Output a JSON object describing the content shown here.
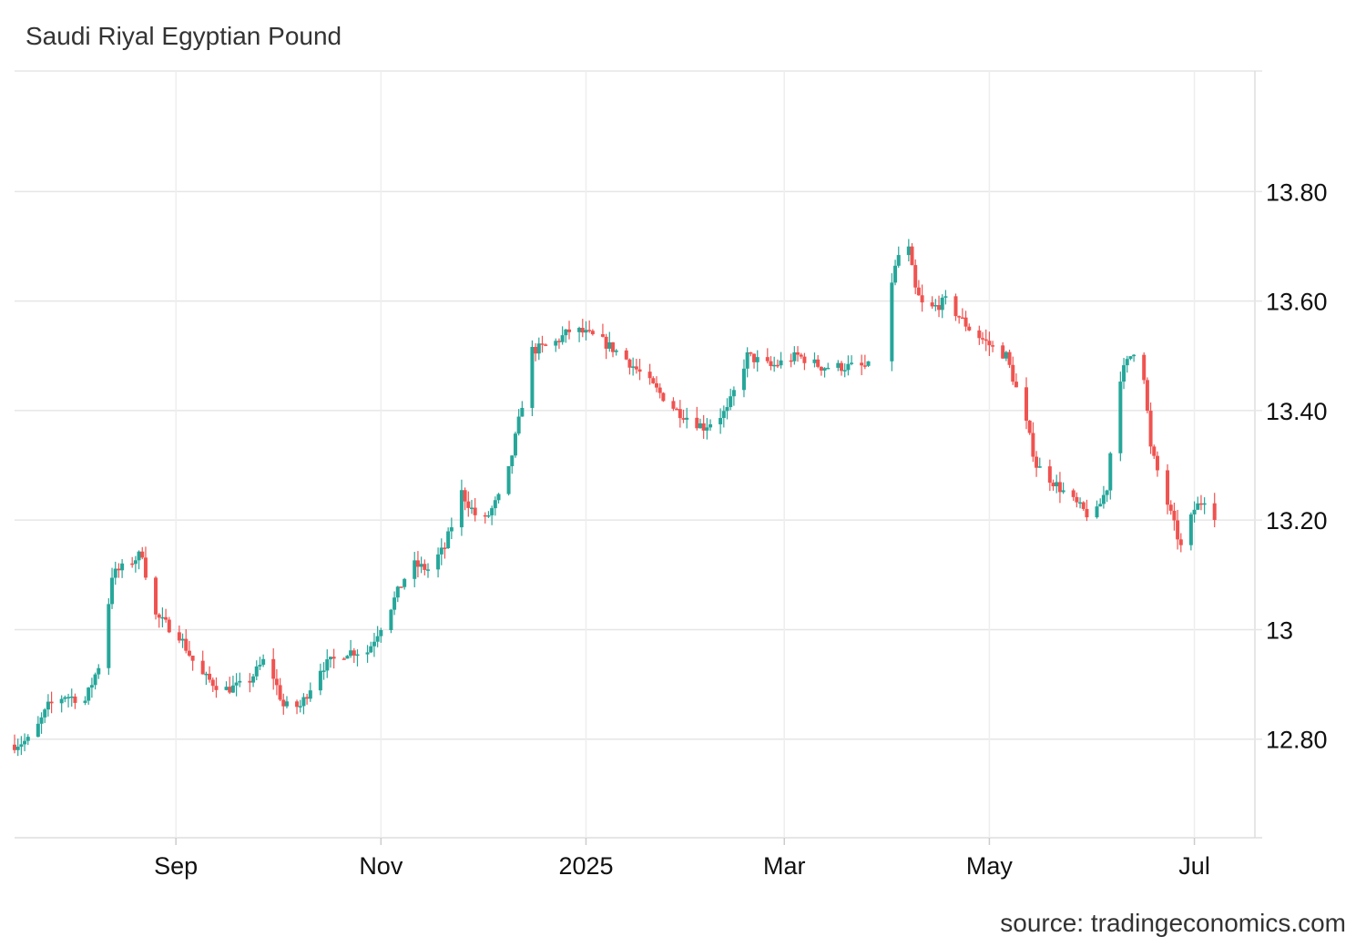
{
  "header": {
    "title": "Saudi Riyal Egyptian Pound"
  },
  "footer": {
    "source": "source: tradingeconomics.com"
  },
  "chart_data": {
    "type": "candlestick",
    "title": "Saudi Riyal Egyptian Pound",
    "xlabel": "",
    "ylabel": "",
    "ylim": [
      12.62,
      14.02
    ],
    "y_ticks": [
      {
        "value": 13.8,
        "label": "13.80"
      },
      {
        "value": 13.6,
        "label": "13.60"
      },
      {
        "value": 13.4,
        "label": "13.40"
      },
      {
        "value": 13.2,
        "label": "13.20"
      },
      {
        "value": 13.0,
        "label": "13"
      },
      {
        "value": 12.8,
        "label": "12.80"
      }
    ],
    "x_ticks": [
      {
        "date": "2024-09-01",
        "label": "Sep"
      },
      {
        "date": "2024-11-01",
        "label": "Nov"
      },
      {
        "date": "2025-01-01",
        "label": "2025"
      },
      {
        "date": "2025-03-01",
        "label": "Mar"
      },
      {
        "date": "2025-05-01",
        "label": "May"
      },
      {
        "date": "2025-07-01",
        "label": "Jul"
      }
    ],
    "x_range": [
      "2024-07-15",
      "2025-07-19"
    ],
    "grid": true,
    "colors": {
      "up": "#26a69a",
      "down": "#ef5350",
      "grid": "#e6e6e6"
    },
    "anchors": [
      [
        "2024-07-15",
        12.79
      ],
      [
        "2024-07-20",
        12.8
      ],
      [
        "2024-07-25",
        12.86
      ],
      [
        "2024-07-30",
        12.88
      ],
      [
        "2024-08-05",
        12.87
      ],
      [
        "2024-08-10",
        12.95
      ],
      [
        "2024-08-13",
        13.1
      ],
      [
        "2024-08-18",
        13.12
      ],
      [
        "2024-08-22",
        13.14
      ],
      [
        "2024-08-25",
        13.03
      ],
      [
        "2024-08-29",
        13.01
      ],
      [
        "2024-09-02",
        12.99
      ],
      [
        "2024-09-08",
        12.92
      ],
      [
        "2024-09-15",
        12.89
      ],
      [
        "2024-09-22",
        12.9
      ],
      [
        "2024-09-28",
        12.95
      ],
      [
        "2024-10-03",
        12.86
      ],
      [
        "2024-10-08",
        12.86
      ],
      [
        "2024-10-14",
        12.93
      ],
      [
        "2024-10-22",
        12.96
      ],
      [
        "2024-10-28",
        12.96
      ],
      [
        "2024-11-03",
        13.03
      ],
      [
        "2024-11-10",
        13.12
      ],
      [
        "2024-11-15",
        13.11
      ],
      [
        "2024-11-20",
        13.15
      ],
      [
        "2024-11-25",
        13.25
      ],
      [
        "2024-12-01",
        13.19
      ],
      [
        "2024-12-06",
        13.24
      ],
      [
        "2024-12-09",
        13.29
      ],
      [
        "2024-12-12",
        13.38
      ],
      [
        "2024-12-16",
        13.51
      ],
      [
        "2024-12-22",
        13.52
      ],
      [
        "2024-12-28",
        13.55
      ],
      [
        "2025-01-05",
        13.53
      ],
      [
        "2025-01-12",
        13.5
      ],
      [
        "2025-01-20",
        13.45
      ],
      [
        "2025-01-28",
        13.4
      ],
      [
        "2025-02-05",
        13.37
      ],
      [
        "2025-02-12",
        13.4
      ],
      [
        "2025-02-18",
        13.5
      ],
      [
        "2025-02-25",
        13.48
      ],
      [
        "2025-03-05",
        13.5
      ],
      [
        "2025-03-12",
        13.48
      ],
      [
        "2025-03-20",
        13.48
      ],
      [
        "2025-03-26",
        13.48
      ],
      [
        "2025-04-03",
        13.66
      ],
      [
        "2025-04-06",
        13.73
      ],
      [
        "2025-04-09",
        13.62
      ],
      [
        "2025-04-12",
        13.58
      ],
      [
        "2025-04-18",
        13.6
      ],
      [
        "2025-04-25",
        13.55
      ],
      [
        "2025-05-01",
        13.52
      ],
      [
        "2025-05-06",
        13.5
      ],
      [
        "2025-05-11",
        13.4
      ],
      [
        "2025-05-15",
        13.3
      ],
      [
        "2025-05-20",
        13.27
      ],
      [
        "2025-05-25",
        13.24
      ],
      [
        "2025-06-01",
        13.2
      ],
      [
        "2025-06-05",
        13.26
      ],
      [
        "2025-06-08",
        13.45
      ],
      [
        "2025-06-12",
        13.5
      ],
      [
        "2025-06-15",
        13.53
      ],
      [
        "2025-06-18",
        13.33
      ],
      [
        "2025-06-22",
        13.25
      ],
      [
        "2025-06-27",
        13.15
      ],
      [
        "2025-07-01",
        13.22
      ],
      [
        "2025-07-04",
        13.24
      ],
      [
        "2025-07-07",
        13.21
      ]
    ],
    "gap": [
      "2025-03-27",
      "2025-04-01"
    ]
  }
}
